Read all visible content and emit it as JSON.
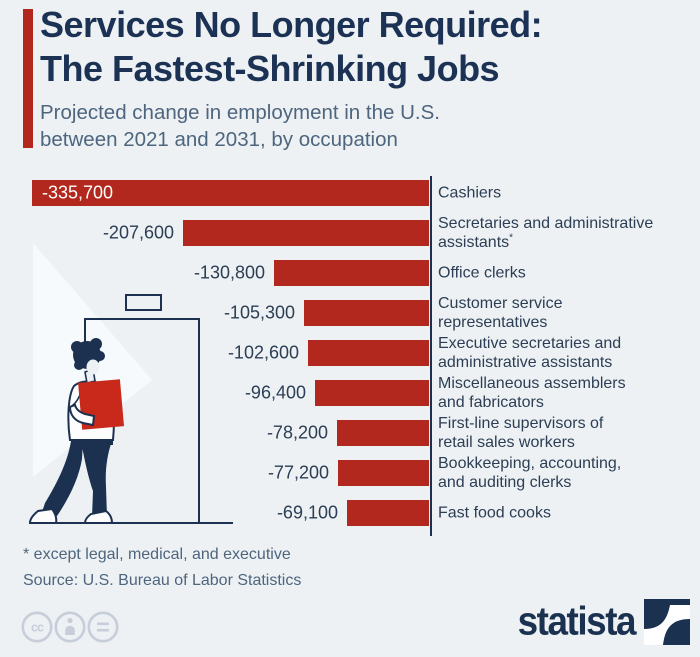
{
  "colors": {
    "background": "#edf1f4",
    "bar_red": "#b3281e",
    "title_navy": "#1b3254",
    "text_navy": "#2c3e54",
    "muted_blue": "#4e657e",
    "illustration_navy": "#1c3050",
    "box_red": "#c9291b",
    "license_gray": "#c7ced9"
  },
  "header": {
    "title_line1": "Services No Longer Required:",
    "title_line2": "The Fastest-Shrinking Jobs",
    "subtitle_line1": "Projected change in employment in the U.S.",
    "subtitle_line2": "between 2021 and 2031, by occupation"
  },
  "chart_data": {
    "type": "bar",
    "orientation": "horizontal",
    "xlim": [
      -335700,
      0
    ],
    "bar_color": "#b3281e",
    "value_label_position": "left-of-bar (first bar: inside, white)",
    "categories": [
      "Cashiers",
      "Secretaries and administrative assistants*",
      "Office clerks",
      "Customer service representatives",
      "Executive secretaries and administrative assistants",
      "Miscellaneous assemblers and fabricators",
      "First-line supervisors of retail sales workers",
      "Bookkeeping, accounting, and auditing clerks",
      "Fast food cooks"
    ],
    "values": [
      -335700,
      -207600,
      -130800,
      -105300,
      -102600,
      -96400,
      -78200,
      -77200,
      -69100
    ],
    "items": [
      {
        "value": -335700,
        "value_label": "-335,700",
        "label_lines": [
          "Cashiers"
        ]
      },
      {
        "value": -207600,
        "value_label": "-207,600",
        "label_lines": [
          "Secretaries and administrative",
          "assistants"
        ],
        "footnote_marker": "*"
      },
      {
        "value": -130800,
        "value_label": "-130,800",
        "label_lines": [
          "Office clerks"
        ]
      },
      {
        "value": -105300,
        "value_label": "-105,300",
        "label_lines": [
          "Customer service",
          "representatives"
        ]
      },
      {
        "value": -102600,
        "value_label": "-102,600",
        "label_lines": [
          "Executive secretaries and",
          "administrative assistants"
        ]
      },
      {
        "value": -96400,
        "value_label": "-96,400",
        "label_lines": [
          "Miscellaneous assemblers",
          "and fabricators"
        ]
      },
      {
        "value": -78200,
        "value_label": "-78,200",
        "label_lines": [
          "First-line supervisors of",
          "retail sales workers"
        ]
      },
      {
        "value": -77200,
        "value_label": "-77,200",
        "label_lines": [
          "Bookkeeping, accounting,",
          "and auditing clerks"
        ]
      },
      {
        "value": -69100,
        "value_label": "-69,100",
        "label_lines": [
          "Fast food cooks"
        ]
      }
    ]
  },
  "footer": {
    "footnote": "* except legal, medical, and executive",
    "source": "Source: U.S. Bureau of Labor Statistics"
  },
  "branding": {
    "logo_text": "statista"
  },
  "license_icons": [
    "cc",
    "attribution",
    "no-derivatives"
  ]
}
